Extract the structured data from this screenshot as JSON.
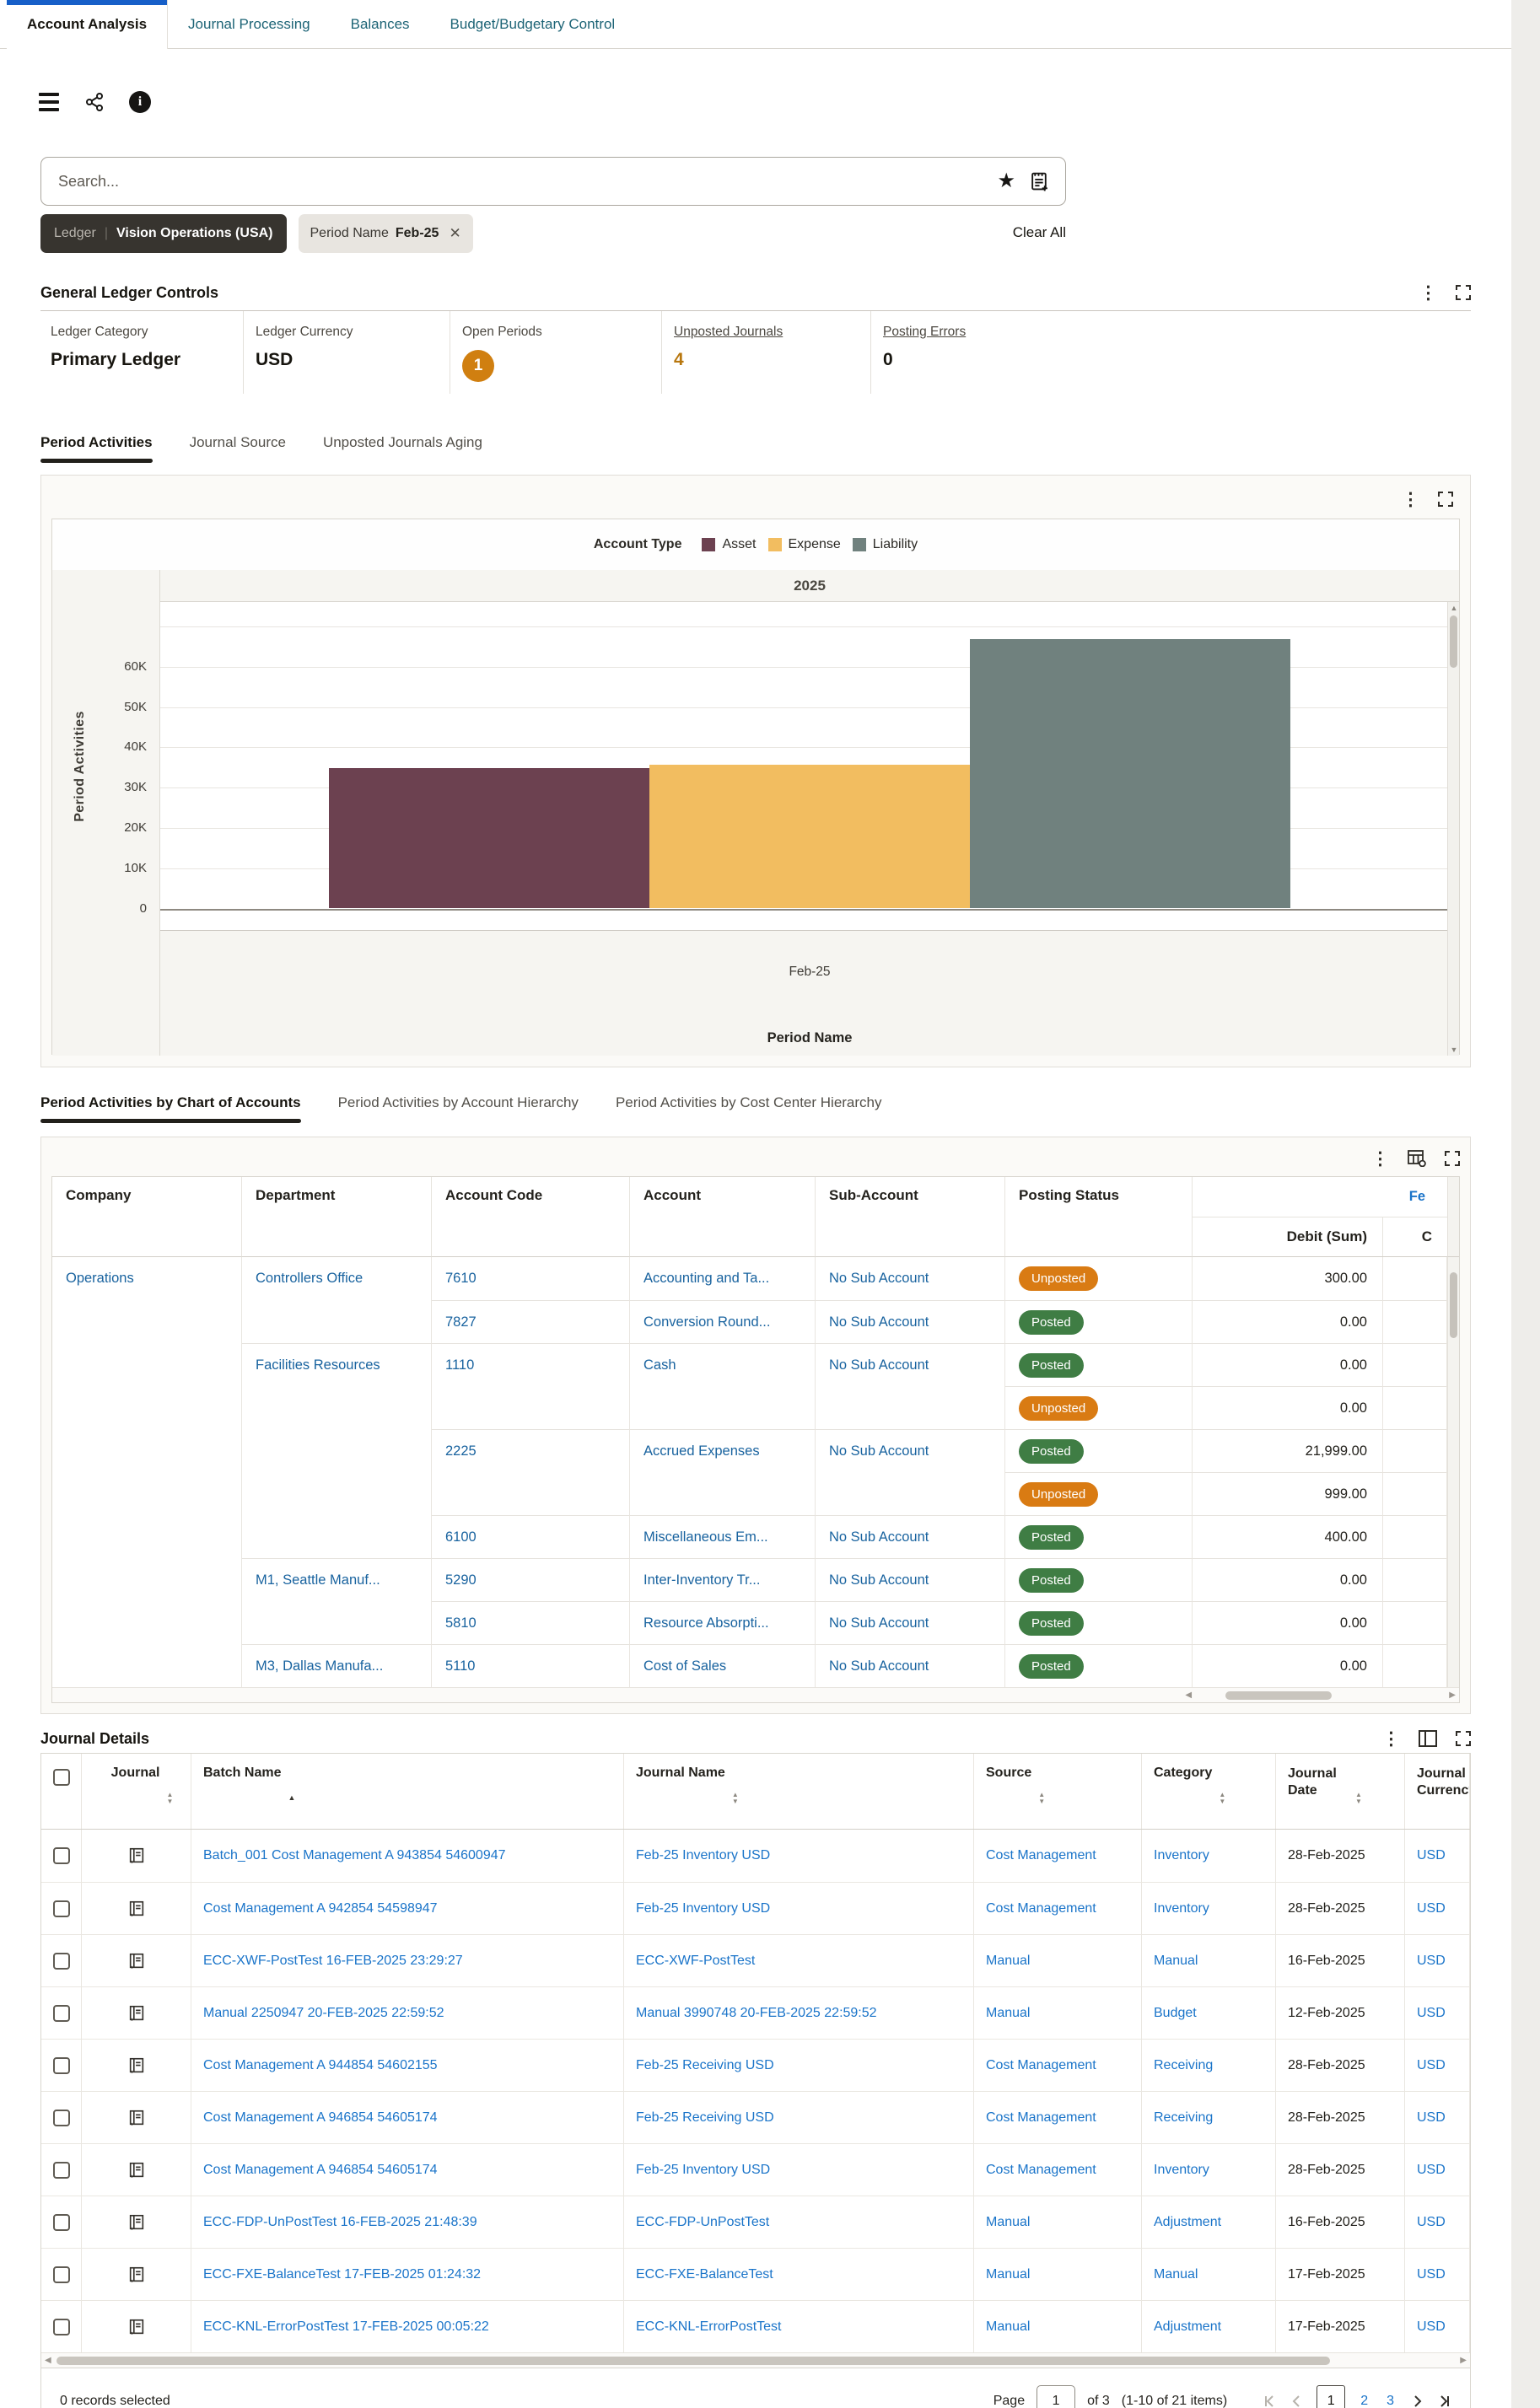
{
  "theme": {
    "active_tab_bar": "#175fc8",
    "inactive_tab_teal": "#1d6476",
    "link_blue": "#1a74c9",
    "table_link_blue": "#19639f",
    "badge_unposted": "#d97b13",
    "badge_posted": "#3f7d44",
    "open_periods_circle": "#d07f10",
    "amber_text": "#b8770e"
  },
  "top_tabs": [
    {
      "label": "Account Analysis",
      "active": true
    },
    {
      "label": "Journal Processing",
      "active": false
    },
    {
      "label": "Balances",
      "active": false
    },
    {
      "label": "Budget/Budgetary Control",
      "active": false
    }
  ],
  "search": {
    "placeholder": "Search..."
  },
  "filters": {
    "ledger_label": "Ledger",
    "ledger_value": "Vision Operations (USA)",
    "period_label": "Period Name",
    "period_value": "Feb-25",
    "close_glyph": "✕",
    "clear_all": "Clear All"
  },
  "gl_controls": {
    "title": "General Ledger Controls",
    "kpis": [
      {
        "label": "Ledger Category",
        "value": "Primary Ledger",
        "type": "text",
        "underline": false
      },
      {
        "label": "Ledger Currency",
        "value": "USD",
        "type": "text",
        "underline": false
      },
      {
        "label": "Open Periods",
        "value": "1",
        "type": "circle",
        "underline": false
      },
      {
        "label": "Unposted Journals",
        "value": "4",
        "type": "amber",
        "underline": true
      },
      {
        "label": "Posting Errors",
        "value": "0",
        "type": "text",
        "underline": true
      }
    ]
  },
  "viz_tabs": [
    {
      "label": "Period Activities",
      "active": true
    },
    {
      "label": "Journal Source",
      "active": false
    },
    {
      "label": "Unposted Journals Aging",
      "active": false
    }
  ],
  "chart_data": {
    "type": "bar",
    "legend_title": "Account Type",
    "legend_position": "top",
    "grid": true,
    "group_label": "2025",
    "categories": [
      "Feb-25"
    ],
    "series": [
      {
        "name": "Asset",
        "color": "#6c4150",
        "values": [
          34600
        ]
      },
      {
        "name": "Expense",
        "color": "#f2bd60",
        "values": [
          35500
        ]
      },
      {
        "name": "Liability",
        "color": "#70817e",
        "values": [
          66500
        ]
      }
    ],
    "xlabel": "Period Name",
    "ylabel": "Period Activities",
    "ylim": [
      0,
      76000
    ],
    "ytick_step": 10000,
    "ytick_max": 60000
  },
  "coa_tabs": [
    {
      "label": "Period Activities by Chart of Accounts",
      "active": true
    },
    {
      "label": "Period Activities by Account Hierarchy",
      "active": false
    },
    {
      "label": "Period Activities by Cost Center Hierarchy",
      "active": false
    }
  ],
  "coa_table": {
    "columns": [
      "Company",
      "Department",
      "Account Code",
      "Account",
      "Sub-Account",
      "Posting Status"
    ],
    "group_header": "Fe",
    "debit_header": "Debit (Sum)",
    "credit_header": "C",
    "rows": [
      [
        [
          "Operations",
          0,
          "l"
        ],
        [
          "Controllers Office",
          0,
          "l"
        ],
        [
          "7610",
          0,
          "l"
        ],
        [
          "Accounting and Ta...",
          0,
          "l"
        ],
        [
          "No Sub Account",
          0,
          "l"
        ],
        [
          "Unposted",
          0,
          "bU"
        ],
        [
          "300.00",
          0,
          "n"
        ],
        [
          "",
          0,
          ""
        ]
      ],
      [
        [
          "",
          0,
          ""
        ],
        [
          "",
          0,
          ""
        ],
        [
          "7827",
          1,
          "l"
        ],
        [
          "Conversion Round...",
          1,
          "l"
        ],
        [
          "No Sub Account",
          1,
          "l"
        ],
        [
          "Posted",
          1,
          "bP"
        ],
        [
          "0.00",
          1,
          "n"
        ],
        [
          "",
          1,
          ""
        ]
      ],
      [
        [
          "",
          0,
          ""
        ],
        [
          "Facilities Resources",
          1,
          "l"
        ],
        [
          "1110",
          1,
          "l"
        ],
        [
          "Cash",
          1,
          "l"
        ],
        [
          "No Sub Account",
          1,
          "l"
        ],
        [
          "Posted",
          1,
          "bP"
        ],
        [
          "0.00",
          1,
          "n"
        ],
        [
          "",
          1,
          ""
        ]
      ],
      [
        [
          "",
          0,
          ""
        ],
        [
          "",
          0,
          ""
        ],
        [
          "",
          0,
          ""
        ],
        [
          "",
          0,
          ""
        ],
        [
          "",
          0,
          ""
        ],
        [
          "Unposted",
          1,
          "bU"
        ],
        [
          "0.00",
          1,
          "n"
        ],
        [
          "",
          1,
          ""
        ]
      ],
      [
        [
          "",
          0,
          ""
        ],
        [
          "",
          0,
          ""
        ],
        [
          "2225",
          1,
          "l"
        ],
        [
          "Accrued Expenses",
          1,
          "l"
        ],
        [
          "No Sub Account",
          1,
          "l"
        ],
        [
          "Posted",
          1,
          "bP"
        ],
        [
          "21,999.00",
          1,
          "n"
        ],
        [
          "",
          1,
          ""
        ]
      ],
      [
        [
          "",
          0,
          ""
        ],
        [
          "",
          0,
          ""
        ],
        [
          "",
          0,
          ""
        ],
        [
          "",
          0,
          ""
        ],
        [
          "",
          0,
          ""
        ],
        [
          "Unposted",
          1,
          "bU"
        ],
        [
          "999.00",
          1,
          "n"
        ],
        [
          "",
          1,
          ""
        ]
      ],
      [
        [
          "",
          0,
          ""
        ],
        [
          "",
          0,
          ""
        ],
        [
          "6100",
          1,
          "l"
        ],
        [
          "Miscellaneous Em...",
          1,
          "l"
        ],
        [
          "No Sub Account",
          1,
          "l"
        ],
        [
          "Posted",
          1,
          "bP"
        ],
        [
          "400.00",
          1,
          "n"
        ],
        [
          "",
          1,
          ""
        ]
      ],
      [
        [
          "",
          0,
          ""
        ],
        [
          "M1, Seattle Manuf...",
          1,
          "l"
        ],
        [
          "5290",
          1,
          "l"
        ],
        [
          "Inter-Inventory Tr...",
          1,
          "l"
        ],
        [
          "No Sub Account",
          1,
          "l"
        ],
        [
          "Posted",
          1,
          "bP"
        ],
        [
          "0.00",
          1,
          "n"
        ],
        [
          "",
          1,
          ""
        ]
      ],
      [
        [
          "",
          0,
          ""
        ],
        [
          "",
          0,
          ""
        ],
        [
          "5810",
          1,
          "l"
        ],
        [
          "Resource Absorpti...",
          1,
          "l"
        ],
        [
          "No Sub Account",
          1,
          "l"
        ],
        [
          "Posted",
          1,
          "bP"
        ],
        [
          "0.00",
          1,
          "n"
        ],
        [
          "",
          1,
          ""
        ]
      ],
      [
        [
          "",
          0,
          ""
        ],
        [
          "M3, Dallas Manufa...",
          1,
          "l"
        ],
        [
          "5110",
          1,
          "l"
        ],
        [
          "Cost of Sales",
          1,
          "l"
        ],
        [
          "No Sub Account",
          1,
          "l"
        ],
        [
          "Posted",
          1,
          "bP"
        ],
        [
          "0.00",
          1,
          "n"
        ],
        [
          "",
          1,
          ""
        ]
      ]
    ]
  },
  "journal_details": {
    "title": "Journal Details",
    "columns": [
      {
        "label": "Journal",
        "sort": "both"
      },
      {
        "label": "Batch Name",
        "sort": "asc"
      },
      {
        "label": "Journal Name",
        "sort": "both"
      },
      {
        "label": "Source",
        "sort": "both"
      },
      {
        "label": "Category",
        "sort": "both"
      },
      {
        "label": "Journal Date",
        "sort": "both"
      },
      {
        "label": "Journal Currency",
        "sort": "none"
      }
    ],
    "rows": [
      {
        "batch": "Batch_001 Cost Management A 943854 54600947",
        "name": "Feb-25 Inventory USD",
        "source": "Cost Management",
        "category": "Inventory",
        "date": "28-Feb-2025",
        "currency": "USD"
      },
      {
        "batch": "Cost Management A 942854 54598947",
        "name": "Feb-25 Inventory USD",
        "source": "Cost Management",
        "category": "Inventory",
        "date": "28-Feb-2025",
        "currency": "USD"
      },
      {
        "batch": "ECC-XWF-PostTest 16-FEB-2025 23:29:27",
        "name": "ECC-XWF-PostTest",
        "source": "Manual",
        "category": "Manual",
        "date": "16-Feb-2025",
        "currency": "USD"
      },
      {
        "batch": "Manual 2250947 20-FEB-2025 22:59:52",
        "name": "Manual 3990748 20-FEB-2025 22:59:52",
        "source": "Manual",
        "category": "Budget",
        "date": "12-Feb-2025",
        "currency": "USD"
      },
      {
        "batch": "Cost Management A 944854 54602155",
        "name": "Feb-25 Receiving USD",
        "source": "Cost Management",
        "category": "Receiving",
        "date": "28-Feb-2025",
        "currency": "USD"
      },
      {
        "batch": "Cost Management A 946854 54605174",
        "name": "Feb-25 Receiving USD",
        "source": "Cost Management",
        "category": "Receiving",
        "date": "28-Feb-2025",
        "currency": "USD"
      },
      {
        "batch": "Cost Management A 946854 54605174",
        "name": "Feb-25 Inventory USD",
        "source": "Cost Management",
        "category": "Inventory",
        "date": "28-Feb-2025",
        "currency": "USD"
      },
      {
        "batch": "ECC-FDP-UnPostTest 16-FEB-2025 21:48:39",
        "name": "ECC-FDP-UnPostTest",
        "source": "Manual",
        "category": "Adjustment",
        "date": "16-Feb-2025",
        "currency": "USD"
      },
      {
        "batch": "ECC-FXE-BalanceTest 17-FEB-2025 01:24:32",
        "name": "ECC-FXE-BalanceTest",
        "source": "Manual",
        "category": "Manual",
        "date": "17-Feb-2025",
        "currency": "USD"
      },
      {
        "batch": "ECC-KNL-ErrorPostTest 17-FEB-2025 00:05:22",
        "name": "ECC-KNL-ErrorPostTest",
        "source": "Manual",
        "category": "Adjustment",
        "date": "17-Feb-2025",
        "currency": "USD"
      }
    ],
    "footer": {
      "selected": "0 records selected",
      "page_label": "Page",
      "page_value": "1",
      "of_label": "of 3",
      "items_label": "(1-10 of 21 items)",
      "pages": [
        "1",
        "2",
        "3"
      ],
      "current_page": "1"
    }
  }
}
